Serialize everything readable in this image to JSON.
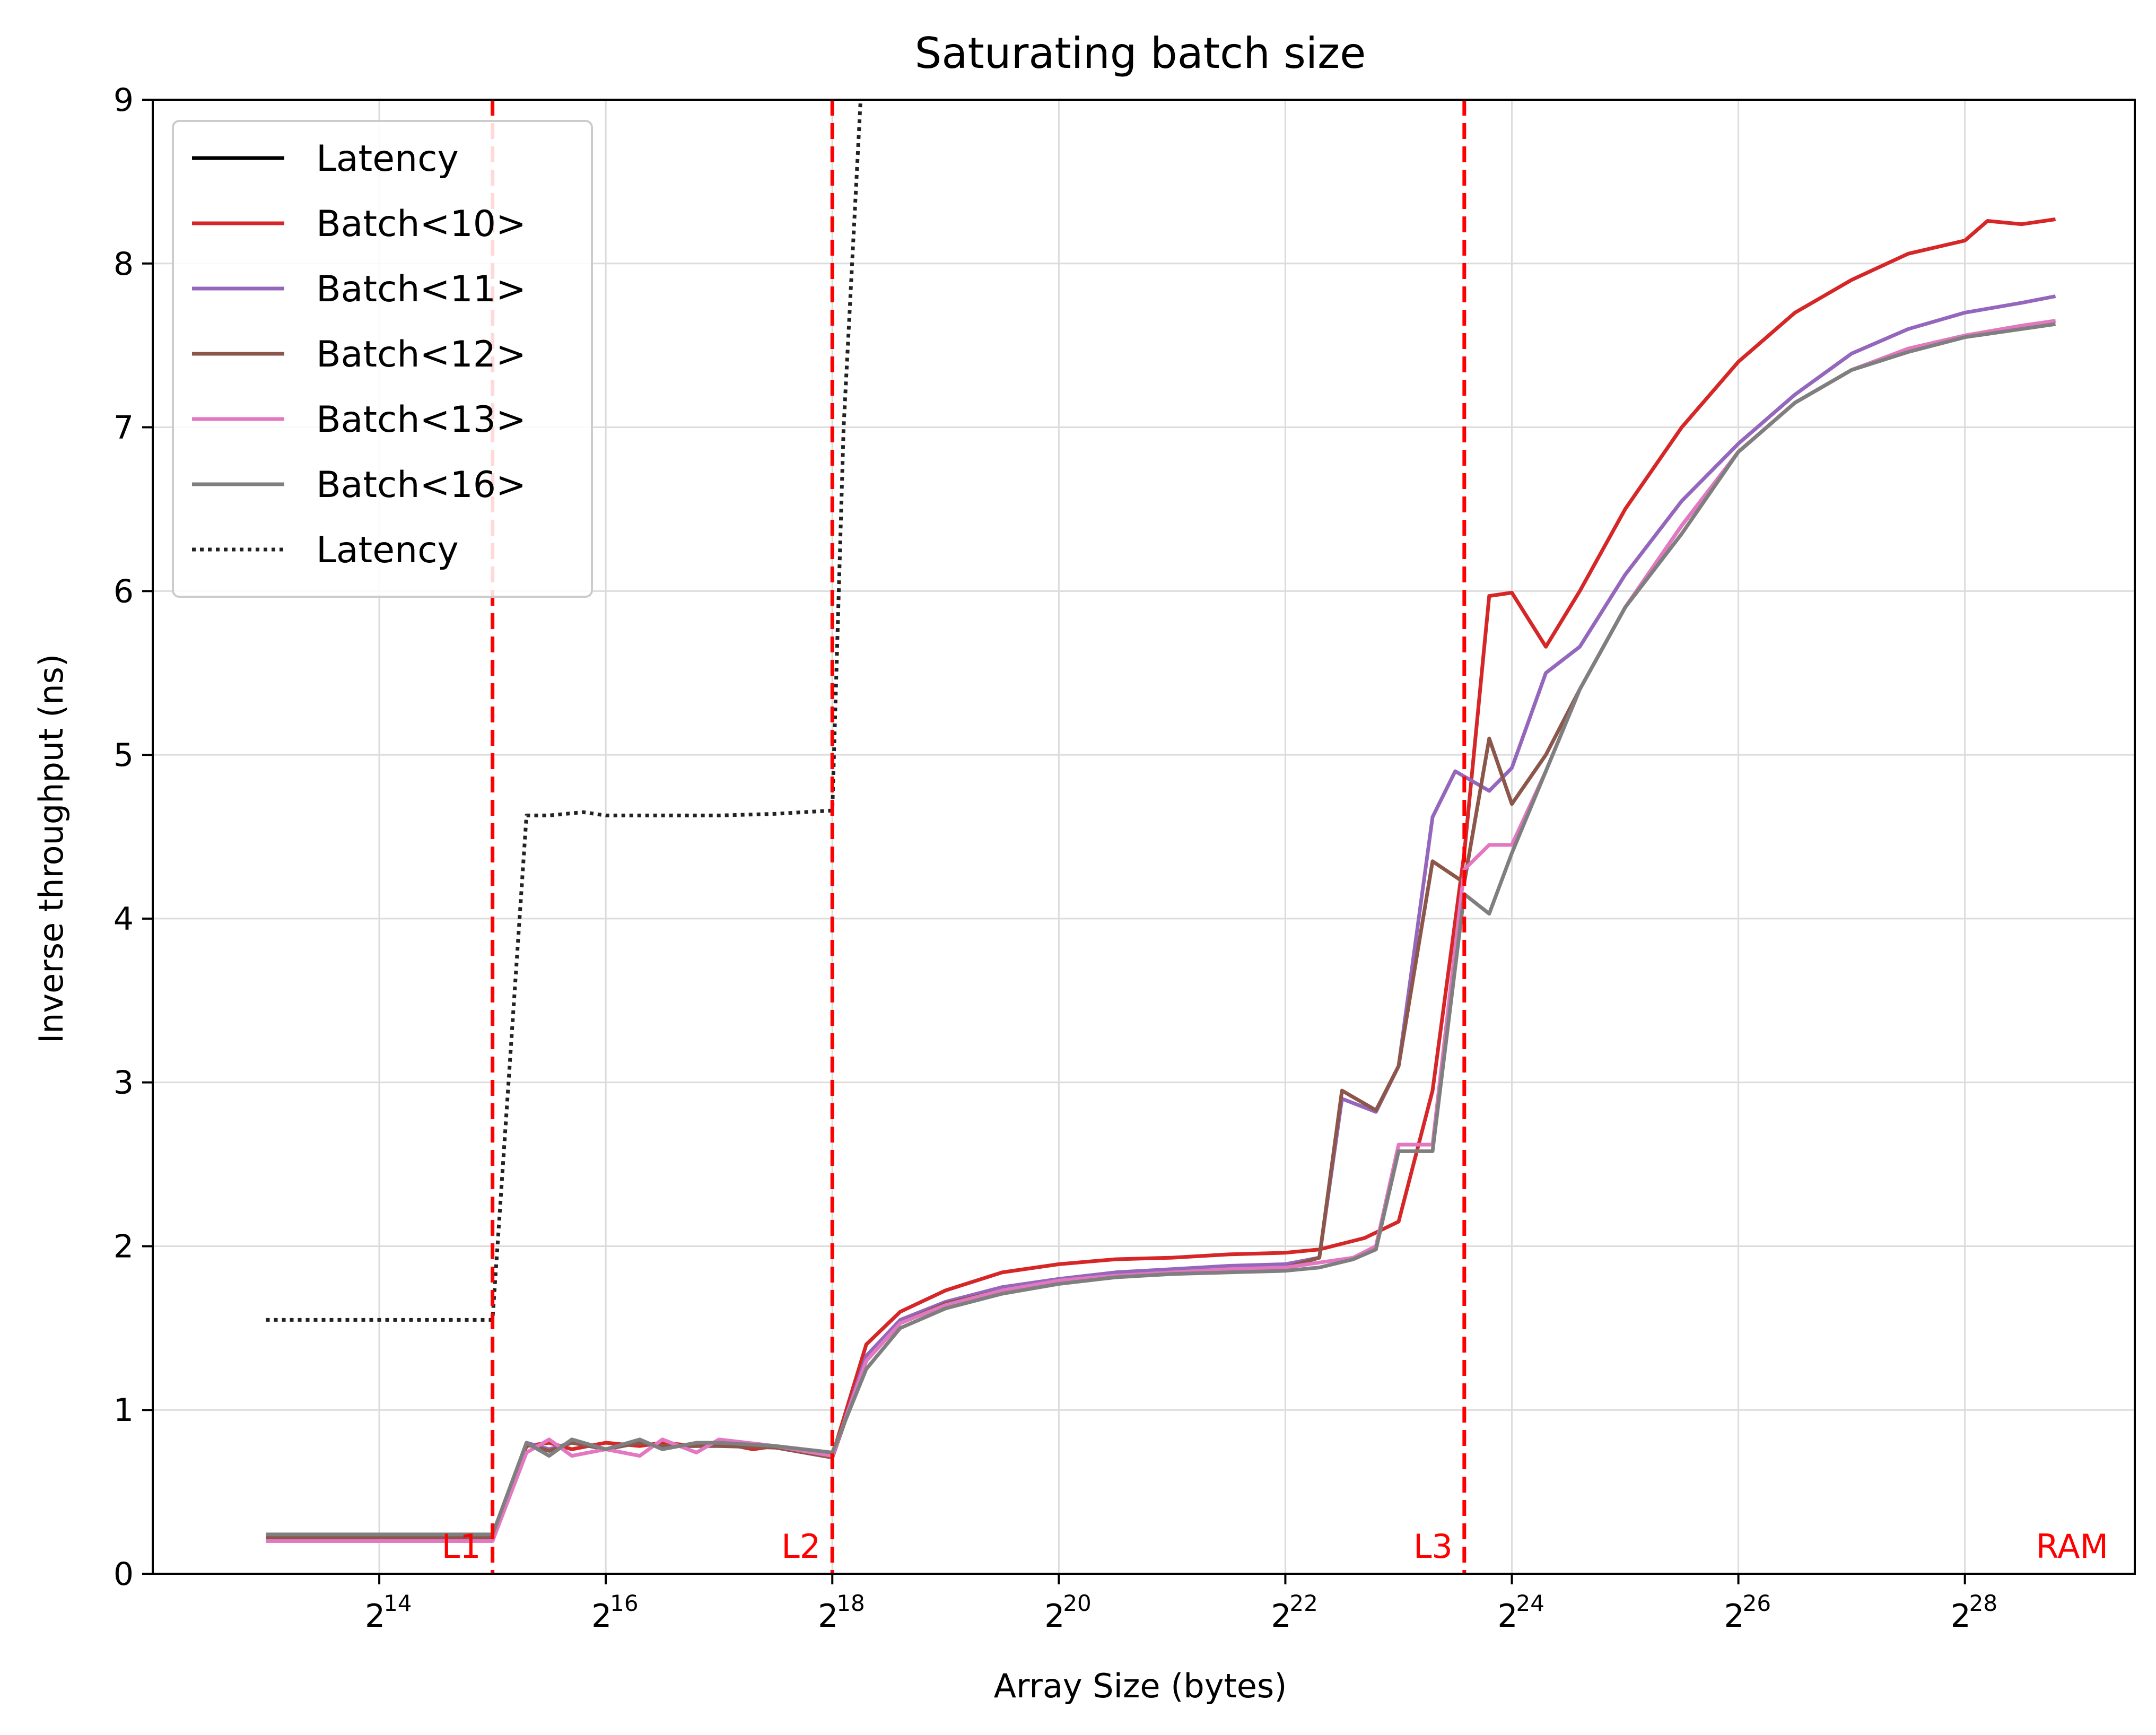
{
  "chart_data": {
    "type": "line",
    "title": "Saturating batch size",
    "xlabel": "Array Size (bytes)",
    "ylabel": "Inverse throughput (ns)",
    "x_scale": "log2",
    "xlim_log2": [
      12.0,
      29.5
    ],
    "ylim": [
      0,
      9
    ],
    "grid": true,
    "legend_position": "top-left",
    "x_ticks": [
      {
        "base": "2",
        "exp": "14",
        "log2": 14
      },
      {
        "base": "2",
        "exp": "16",
        "log2": 16
      },
      {
        "base": "2",
        "exp": "18",
        "log2": 18
      },
      {
        "base": "2",
        "exp": "20",
        "log2": 20
      },
      {
        "base": "2",
        "exp": "22",
        "log2": 22
      },
      {
        "base": "2",
        "exp": "24",
        "log2": 24
      },
      {
        "base": "2",
        "exp": "26",
        "log2": 26
      },
      {
        "base": "2",
        "exp": "28",
        "log2": 28
      }
    ],
    "y_ticks": [
      0,
      1,
      2,
      3,
      4,
      5,
      6,
      7,
      8,
      9
    ],
    "cache_lines": [
      {
        "label": "L1",
        "log2": 15
      },
      {
        "label": "L2",
        "log2": 18
      },
      {
        "label": "L3",
        "log2": 23.58
      },
      {
        "label": "RAM",
        "log2": null
      }
    ],
    "series": [
      {
        "name": "Latency",
        "color": "#000000",
        "style": "solid",
        "points": []
      },
      {
        "name": "Batch<10>",
        "color": "#d62728",
        "style": "solid",
        "points": [
          [
            13,
            0.2
          ],
          [
            13.5,
            0.2
          ],
          [
            14,
            0.2
          ],
          [
            14.5,
            0.2
          ],
          [
            15,
            0.2
          ],
          [
            15.3,
            0.78
          ],
          [
            15.5,
            0.8
          ],
          [
            15.7,
            0.76
          ],
          [
            16,
            0.8
          ],
          [
            16.3,
            0.78
          ],
          [
            16.5,
            0.8
          ],
          [
            16.8,
            0.78
          ],
          [
            17,
            0.8
          ],
          [
            17.3,
            0.76
          ],
          [
            17.5,
            0.78
          ],
          [
            18,
            0.72
          ],
          [
            18.3,
            1.4
          ],
          [
            18.6,
            1.6
          ],
          [
            19,
            1.73
          ],
          [
            19.5,
            1.84
          ],
          [
            20,
            1.89
          ],
          [
            20.5,
            1.92
          ],
          [
            21,
            1.93
          ],
          [
            21.5,
            1.95
          ],
          [
            22,
            1.96
          ],
          [
            22.3,
            1.98
          ],
          [
            22.7,
            2.05
          ],
          [
            23,
            2.15
          ],
          [
            23.3,
            2.95
          ],
          [
            23.58,
            4.4
          ],
          [
            23.8,
            5.97
          ],
          [
            24,
            5.99
          ],
          [
            24.3,
            5.66
          ],
          [
            24.6,
            6.0
          ],
          [
            25,
            6.5
          ],
          [
            25.5,
            7.0
          ],
          [
            26,
            7.4
          ],
          [
            26.5,
            7.7
          ],
          [
            27,
            7.9
          ],
          [
            27.5,
            8.06
          ],
          [
            28,
            8.14
          ],
          [
            28.2,
            8.26
          ],
          [
            28.5,
            8.24
          ],
          [
            28.8,
            8.27
          ]
        ]
      },
      {
        "name": "Batch<11>",
        "color": "#9467bd",
        "style": "solid",
        "points": [
          [
            13,
            0.21
          ],
          [
            13.5,
            0.21
          ],
          [
            14,
            0.21
          ],
          [
            14.5,
            0.21
          ],
          [
            15,
            0.21
          ],
          [
            15.3,
            0.8
          ],
          [
            15.5,
            0.76
          ],
          [
            15.7,
            0.8
          ],
          [
            16,
            0.76
          ],
          [
            16.3,
            0.8
          ],
          [
            16.5,
            0.78
          ],
          [
            16.8,
            0.78
          ],
          [
            17,
            0.8
          ],
          [
            17.5,
            0.77
          ],
          [
            18,
            0.71
          ],
          [
            18.3,
            1.33
          ],
          [
            18.6,
            1.55
          ],
          [
            19,
            1.66
          ],
          [
            19.5,
            1.75
          ],
          [
            20,
            1.8
          ],
          [
            20.5,
            1.84
          ],
          [
            21,
            1.86
          ],
          [
            21.5,
            1.88
          ],
          [
            22,
            1.89
          ],
          [
            22.3,
            1.93
          ],
          [
            22.5,
            2.9
          ],
          [
            22.8,
            2.82
          ],
          [
            23,
            3.1
          ],
          [
            23.3,
            4.62
          ],
          [
            23.5,
            4.9
          ],
          [
            23.8,
            4.78
          ],
          [
            24,
            4.92
          ],
          [
            24.3,
            5.5
          ],
          [
            24.6,
            5.66
          ],
          [
            25,
            6.1
          ],
          [
            25.5,
            6.55
          ],
          [
            26,
            6.9
          ],
          [
            26.5,
            7.2
          ],
          [
            27,
            7.45
          ],
          [
            27.5,
            7.6
          ],
          [
            28,
            7.7
          ],
          [
            28.5,
            7.76
          ],
          [
            28.8,
            7.8
          ]
        ]
      },
      {
        "name": "Batch<12>",
        "color": "#8c564b",
        "style": "solid",
        "points": [
          [
            13,
            0.22
          ],
          [
            13.5,
            0.22
          ],
          [
            14,
            0.22
          ],
          [
            14.5,
            0.22
          ],
          [
            15,
            0.22
          ],
          [
            15.3,
            0.79
          ],
          [
            15.5,
            0.75
          ],
          [
            15.7,
            0.8
          ],
          [
            16,
            0.76
          ],
          [
            16.3,
            0.8
          ],
          [
            16.5,
            0.78
          ],
          [
            17,
            0.78
          ],
          [
            17.5,
            0.77
          ],
          [
            18,
            0.71
          ],
          [
            18.3,
            1.3
          ],
          [
            18.6,
            1.53
          ],
          [
            19,
            1.65
          ],
          [
            19.5,
            1.73
          ],
          [
            20,
            1.79
          ],
          [
            20.5,
            1.82
          ],
          [
            21,
            1.84
          ],
          [
            21.5,
            1.86
          ],
          [
            22,
            1.87
          ],
          [
            22.3,
            1.93
          ],
          [
            22.5,
            2.95
          ],
          [
            22.8,
            2.83
          ],
          [
            23,
            3.1
          ],
          [
            23.3,
            4.35
          ],
          [
            23.58,
            4.22
          ],
          [
            23.8,
            5.1
          ],
          [
            24,
            4.7
          ],
          [
            24.3,
            5.0
          ],
          [
            24.6,
            5.4
          ],
          [
            25,
            5.9
          ],
          [
            25.5,
            6.4
          ],
          [
            26,
            6.85
          ],
          [
            26.5,
            7.15
          ],
          [
            27,
            7.35
          ],
          [
            27.5,
            7.48
          ],
          [
            28,
            7.56
          ],
          [
            28.5,
            7.62
          ],
          [
            28.8,
            7.65
          ]
        ]
      },
      {
        "name": "Batch<13>",
        "color": "#e377c2",
        "style": "solid",
        "points": [
          [
            13,
            0.2
          ],
          [
            13.5,
            0.2
          ],
          [
            14,
            0.2
          ],
          [
            14.5,
            0.2
          ],
          [
            15,
            0.2
          ],
          [
            15.3,
            0.74
          ],
          [
            15.5,
            0.82
          ],
          [
            15.7,
            0.72
          ],
          [
            16,
            0.76
          ],
          [
            16.3,
            0.72
          ],
          [
            16.5,
            0.82
          ],
          [
            16.8,
            0.74
          ],
          [
            17,
            0.82
          ],
          [
            17.5,
            0.78
          ],
          [
            18,
            0.72
          ],
          [
            18.3,
            1.3
          ],
          [
            18.6,
            1.53
          ],
          [
            19,
            1.64
          ],
          [
            19.5,
            1.73
          ],
          [
            20,
            1.79
          ],
          [
            20.5,
            1.82
          ],
          [
            21,
            1.84
          ],
          [
            21.5,
            1.86
          ],
          [
            22,
            1.87
          ],
          [
            22.3,
            1.9
          ],
          [
            22.6,
            1.93
          ],
          [
            22.8,
            2.0
          ],
          [
            23,
            2.62
          ],
          [
            23.3,
            2.62
          ],
          [
            23.58,
            4.3
          ],
          [
            23.8,
            4.45
          ],
          [
            24,
            4.45
          ],
          [
            24.3,
            4.9
          ],
          [
            24.6,
            5.4
          ],
          [
            25,
            5.9
          ],
          [
            25.5,
            6.4
          ],
          [
            26,
            6.85
          ],
          [
            26.5,
            7.15
          ],
          [
            27,
            7.35
          ],
          [
            27.5,
            7.48
          ],
          [
            28,
            7.56
          ],
          [
            28.5,
            7.62
          ],
          [
            28.8,
            7.65
          ]
        ]
      },
      {
        "name": "Batch<16>",
        "color": "#7f7f7f",
        "style": "solid",
        "points": [
          [
            13,
            0.24
          ],
          [
            13.5,
            0.24
          ],
          [
            14,
            0.24
          ],
          [
            14.5,
            0.24
          ],
          [
            15,
            0.24
          ],
          [
            15.3,
            0.8
          ],
          [
            15.5,
            0.72
          ],
          [
            15.7,
            0.82
          ],
          [
            16,
            0.76
          ],
          [
            16.3,
            0.82
          ],
          [
            16.5,
            0.76
          ],
          [
            16.8,
            0.8
          ],
          [
            17,
            0.8
          ],
          [
            17.5,
            0.78
          ],
          [
            18,
            0.74
          ],
          [
            18.3,
            1.25
          ],
          [
            18.6,
            1.5
          ],
          [
            19,
            1.62
          ],
          [
            19.5,
            1.71
          ],
          [
            20,
            1.77
          ],
          [
            20.5,
            1.81
          ],
          [
            21,
            1.83
          ],
          [
            21.5,
            1.84
          ],
          [
            22,
            1.85
          ],
          [
            22.3,
            1.87
          ],
          [
            22.6,
            1.92
          ],
          [
            22.8,
            1.98
          ],
          [
            23,
            2.58
          ],
          [
            23.3,
            2.58
          ],
          [
            23.58,
            4.15
          ],
          [
            23.8,
            4.03
          ],
          [
            24,
            4.4
          ],
          [
            24.3,
            4.9
          ],
          [
            24.6,
            5.4
          ],
          [
            25,
            5.9
          ],
          [
            25.5,
            6.35
          ],
          [
            26,
            6.85
          ],
          [
            26.5,
            7.15
          ],
          [
            27,
            7.35
          ],
          [
            27.5,
            7.46
          ],
          [
            28,
            7.55
          ],
          [
            28.5,
            7.6
          ],
          [
            28.8,
            7.63
          ]
        ]
      },
      {
        "name": "Latency",
        "color": "#222222",
        "style": "dotted",
        "points": [
          [
            13,
            1.55
          ],
          [
            13.5,
            1.55
          ],
          [
            14,
            1.55
          ],
          [
            14.5,
            1.55
          ],
          [
            15,
            1.55
          ],
          [
            15.3,
            4.63
          ],
          [
            15.5,
            4.63
          ],
          [
            15.8,
            4.65
          ],
          [
            16,
            4.63
          ],
          [
            16.5,
            4.63
          ],
          [
            17,
            4.63
          ],
          [
            17.5,
            4.64
          ],
          [
            18,
            4.66
          ],
          [
            18.1,
            7.0
          ],
          [
            18.25,
            9.0
          ]
        ]
      }
    ]
  }
}
